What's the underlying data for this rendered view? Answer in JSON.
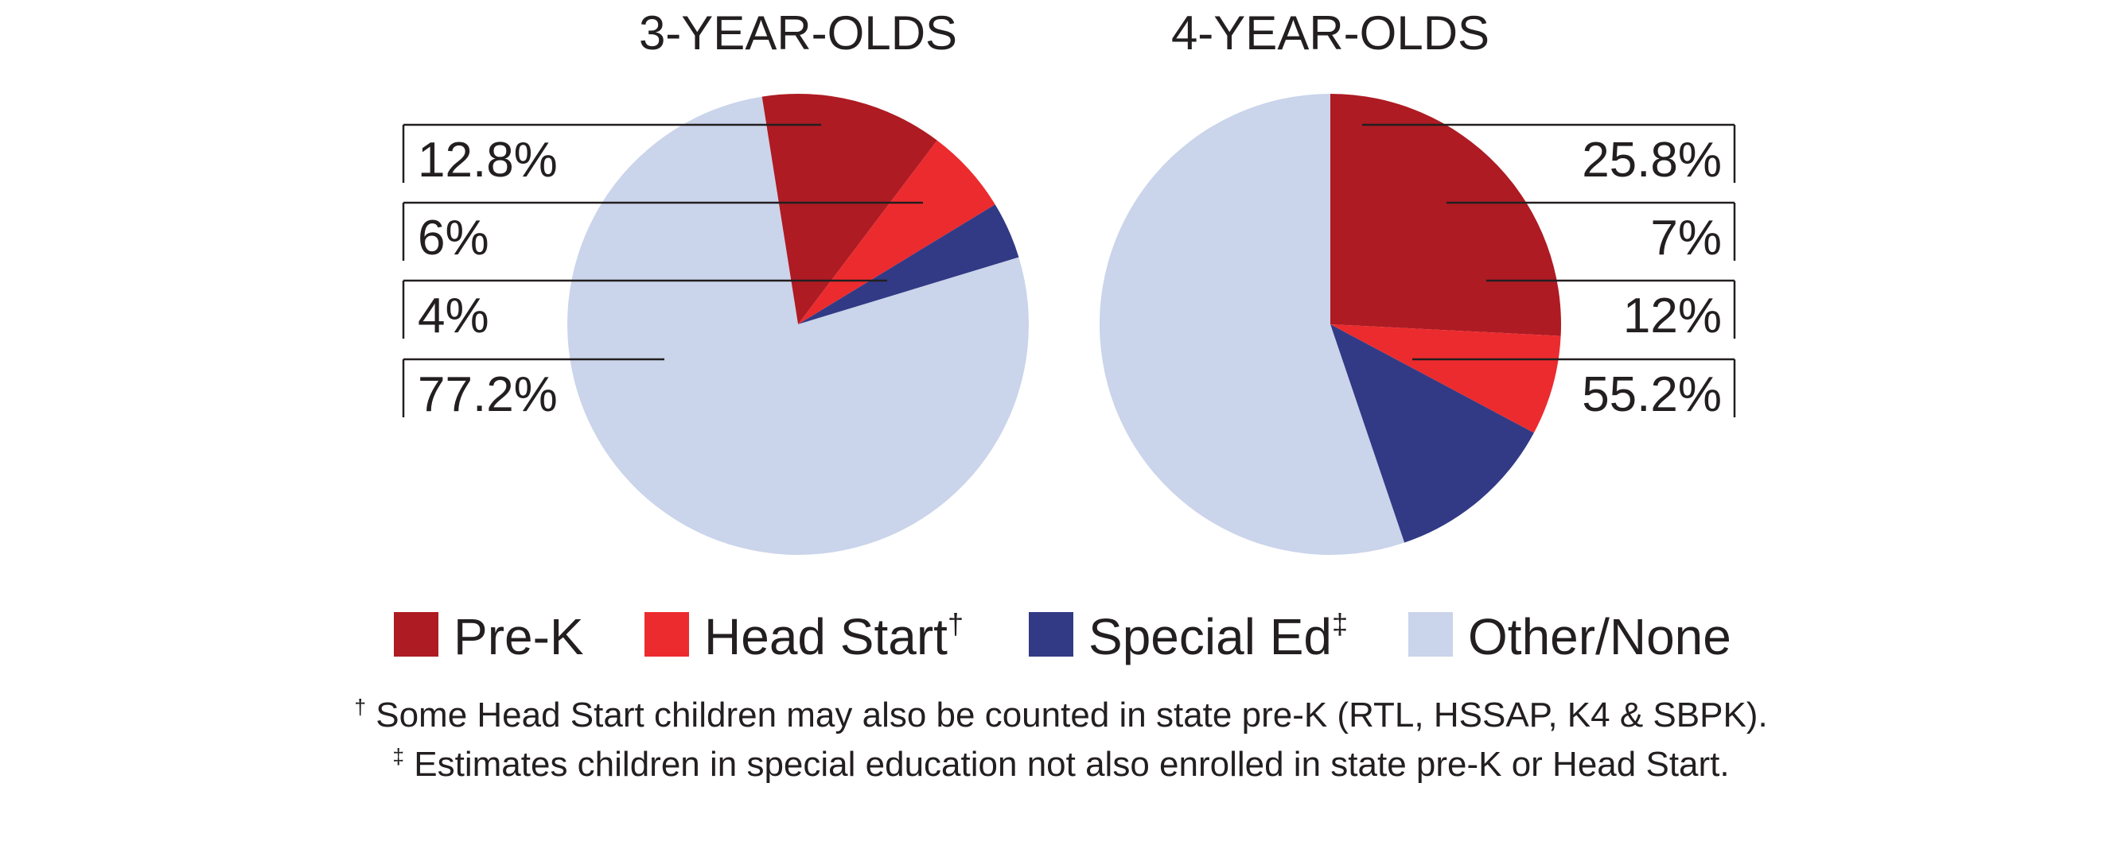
{
  "chart_data": [
    {
      "type": "pie",
      "title": "3-YEAR-OLDS",
      "categories": [
        "Pre-K",
        "Head Start",
        "Special Ed",
        "Other/None"
      ],
      "values": [
        12.8,
        6,
        4,
        77.2
      ],
      "labels": [
        "12.8%",
        "6%",
        "4%",
        "77.2%"
      ],
      "label_side": "left"
    },
    {
      "type": "pie",
      "title": "4-YEAR-OLDS",
      "categories": [
        "Pre-K",
        "Head Start",
        "Special Ed",
        "Other/None"
      ],
      "values": [
        25.8,
        7,
        12,
        55.2
      ],
      "labels": [
        "25.8%",
        "7%",
        "12%",
        "55.2%"
      ],
      "label_side": "right"
    }
  ],
  "legend": [
    {
      "label": "Pre-K",
      "mark": "",
      "color": "#ae1b23"
    },
    {
      "label": "Head Start",
      "mark": "†",
      "color": "#ec2b2e"
    },
    {
      "label": "Special Ed",
      "mark": "‡",
      "color": "#323a85"
    },
    {
      "label": "Other/None",
      "mark": "",
      "color": "#cad4ea"
    }
  ],
  "footnotes": {
    "dagger_mark": "†",
    "dagger_text": " Some Head Start children may also be counted in state pre-K (RTL, HSSAP, K4 & SBPK).",
    "ddagger_mark": "‡",
    "ddagger_text": " Estimates children in special education not also enrolled in state pre-K or Head Start."
  }
}
